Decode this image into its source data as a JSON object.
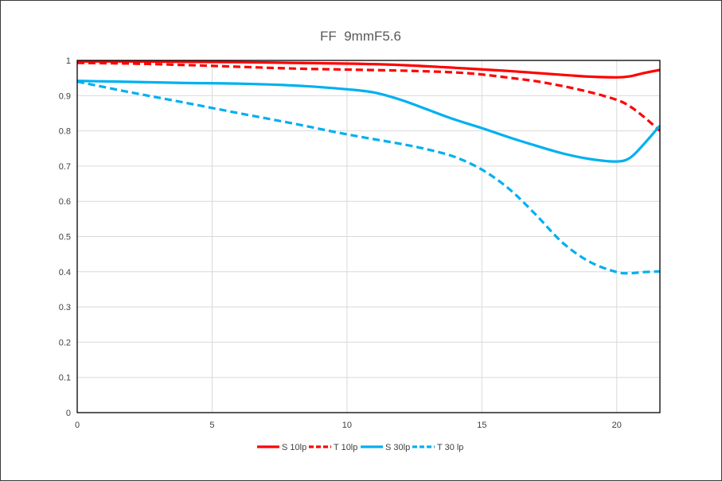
{
  "chart_data": {
    "type": "line",
    "title": "FF  9mmF5.6",
    "xlabel": "",
    "ylabel": "",
    "xlim": [
      0,
      21.6
    ],
    "ylim": [
      0,
      1
    ],
    "x_ticks": [
      0,
      5,
      10,
      15,
      20
    ],
    "y_ticks": [
      0,
      0.1,
      0.2,
      0.3,
      0.4,
      0.5,
      0.6,
      0.7,
      0.8,
      0.9,
      1
    ],
    "x_tick_labels": [
      "0",
      "5",
      "10",
      "15",
      "20"
    ],
    "y_tick_labels": [
      "0",
      "0.1",
      "0.2",
      "0.3",
      "0.4",
      "0.5",
      "0.6",
      "0.7",
      "0.8",
      "0.9",
      "1"
    ],
    "grid": "vertical",
    "legend_position": "bottom",
    "series": [
      {
        "name": "S 10lp",
        "color": "#ff0000",
        "dash": "solid",
        "x": [
          0,
          2,
          4,
          6,
          8,
          10,
          12,
          14,
          16,
          18,
          19,
          20,
          20.5,
          21,
          21.6
        ],
        "y": [
          0.997,
          0.997,
          0.996,
          0.995,
          0.993,
          0.991,
          0.987,
          0.979,
          0.97,
          0.959,
          0.954,
          0.952,
          0.955,
          0.964,
          0.973
        ]
      },
      {
        "name": "T 10lp",
        "color": "#ff0000",
        "dash": "dashed",
        "x": [
          0,
          2,
          4,
          6,
          8,
          10,
          12,
          14,
          15,
          16,
          17,
          18,
          19,
          20,
          20.5,
          21,
          21.6
        ],
        "y": [
          0.993,
          0.991,
          0.987,
          0.982,
          0.977,
          0.974,
          0.971,
          0.966,
          0.96,
          0.951,
          0.941,
          0.927,
          0.91,
          0.888,
          0.869,
          0.84,
          0.8
        ]
      },
      {
        "name": "S 30lp",
        "color": "#00b0f0",
        "dash": "solid",
        "x": [
          0,
          2,
          4,
          6,
          8,
          10,
          11,
          12,
          13,
          14,
          15,
          16,
          17,
          18,
          19,
          20,
          20.5,
          21,
          21.6
        ],
        "y": [
          0.942,
          0.939,
          0.936,
          0.934,
          0.929,
          0.918,
          0.909,
          0.888,
          0.86,
          0.832,
          0.808,
          0.782,
          0.758,
          0.736,
          0.72,
          0.713,
          0.724,
          0.762,
          0.815
        ]
      },
      {
        "name": "T 30 lp",
        "color": "#00b0f0",
        "dash": "dashed",
        "x": [
          0,
          2,
          4,
          6,
          8,
          10,
          12,
          13,
          14,
          15,
          16,
          17,
          18,
          19,
          20,
          20.5,
          21,
          21.6
        ],
        "y": [
          0.94,
          0.909,
          0.88,
          0.85,
          0.821,
          0.79,
          0.763,
          0.747,
          0.726,
          0.69,
          0.636,
          0.562,
          0.482,
          0.428,
          0.399,
          0.396,
          0.399,
          0.401
        ]
      }
    ]
  }
}
